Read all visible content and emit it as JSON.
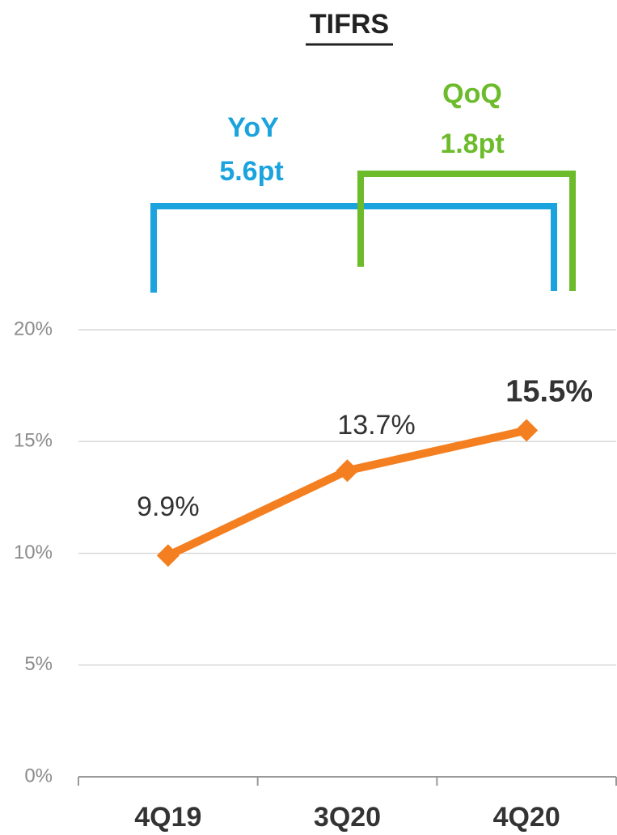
{
  "chart_data": {
    "type": "line",
    "title": "TIFRS",
    "categories": [
      "4Q19",
      "3Q20",
      "4Q20"
    ],
    "series": [
      {
        "color": "#f47f20",
        "values": [
          9.9,
          13.7,
          15.5
        ],
        "value_labels": [
          "9.9%",
          "13.7%",
          "15.5%"
        ]
      }
    ],
    "ylim": [
      0,
      20
    ],
    "yticks": [
      {
        "value": 0,
        "label": "0%"
      },
      {
        "value": 5,
        "label": "5%"
      },
      {
        "value": 10,
        "label": "10%"
      },
      {
        "value": 15,
        "label": "15%"
      },
      {
        "value": 20,
        "label": "20%"
      }
    ],
    "grid": true,
    "annotations": [
      {
        "text": "YoY",
        "detail": "5.6pt",
        "color": "#1aa3dc"
      },
      {
        "text": "QoQ",
        "detail": "1.8pt",
        "color": "#6cbb2b"
      }
    ]
  }
}
